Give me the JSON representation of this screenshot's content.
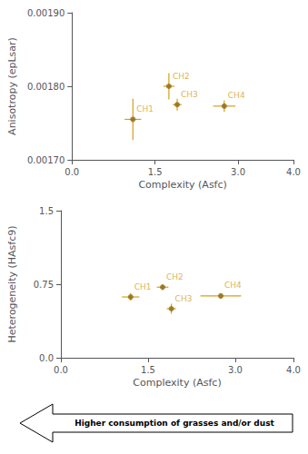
{
  "chart_data": [
    {
      "type": "scatter",
      "xlabel": "Complexity (Asfc)",
      "ylabel": "Anisotropy (epLsar)",
      "xlim": [
        0.0,
        4.0
      ],
      "ylim": [
        0.0017,
        0.0019
      ],
      "xticks": [
        {
          "value": 0.0,
          "label": "0.0"
        },
        1.5,
        {
          "value": 3.0,
          "label": "3.0"
        },
        {
          "value": 4.0,
          "label": "4.0"
        }
      ],
      "yticks": [
        {
          "value": 0.0017,
          "label": "0.00170"
        },
        {
          "value": 0.0018,
          "label": "0.00180"
        },
        {
          "value": 0.0019,
          "label": "0.00190"
        }
      ],
      "grid": false,
      "color": "#D4A017",
      "series": [
        {
          "color": "#8B6914",
          "labels": [
            "CH1",
            "CH2",
            "CH3",
            "CH4"
          ],
          "x": [
            1.1,
            1.75,
            1.9,
            2.75
          ],
          "values": [
            0.001755,
            0.0018,
            0.001775,
            0.001773
          ],
          "xerr": [
            0.15,
            0.1,
            0.08,
            0.2
          ],
          "yerr": [
            2.8e-05,
            1.8e-05,
            8e-06,
            8e-06
          ]
        }
      ]
    },
    {
      "type": "scatter",
      "xlabel": "Complexity (Asfc)",
      "ylabel": "Heterogeneity (HAsfc9)",
      "xlim": [
        0.0,
        4.0
      ],
      "ylim": [
        0.0,
        1.5
      ],
      "xticks": [
        {
          "value": 0.0,
          "label": "0.0"
        },
        1.5,
        {
          "value": 3.0,
          "label": "3.0"
        },
        {
          "value": 4.0,
          "label": "4.0"
        }
      ],
      "yticks": [
        {
          "value": 0.0,
          "label": "0.0"
        },
        0.75,
        1.5
      ],
      "grid": false,
      "color": "#D4A017",
      "series": [
        {
          "color": "#8B6914",
          "labels": [
            "CH1",
            "CH2",
            "CH3",
            "CH4"
          ],
          "x": [
            1.2,
            1.75,
            1.9,
            2.75
          ],
          "values": [
            0.62,
            0.72,
            0.5,
            0.63
          ],
          "xerr": [
            0.15,
            0.1,
            0.08,
            0.35
          ],
          "yerr": [
            0.04,
            0.03,
            0.05,
            0.03
          ]
        }
      ],
      "annotation": "Higher consumption of grasses and/or dust"
    }
  ]
}
